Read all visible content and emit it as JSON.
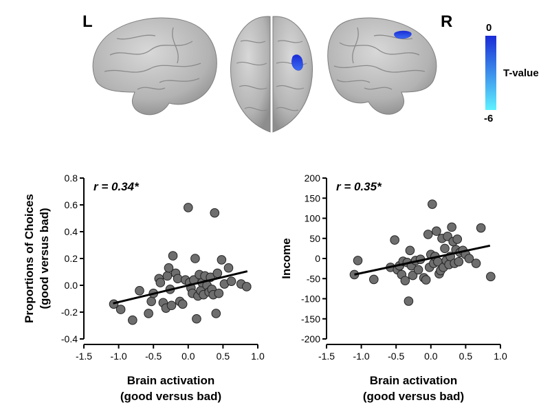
{
  "brain_panel": {
    "left_label": "L",
    "right_label": "R",
    "colorbar": {
      "top": "0",
      "bottom": "-6",
      "title": "T-value",
      "color_top": "#1a2bd6",
      "color_bottom": "#5ef2ff"
    },
    "surface_color": "#b9b9b9",
    "cluster_color": "#1f3fe0"
  },
  "chart_data": [
    {
      "type": "scatter",
      "annotation": "r = 0.34*",
      "ylabel_lines": [
        "Proportions of Choices",
        "(good versus bad)"
      ],
      "xlabel_lines": [
        "Brain activation",
        "(good versus bad)"
      ],
      "xlim": [
        -1.5,
        1.0
      ],
      "ylim": [
        -0.4,
        0.8
      ],
      "xticks": [
        -1.5,
        -1.0,
        -0.5,
        0.0,
        0.5,
        1.0
      ],
      "xtick_labels": [
        "-1.5",
        "-1.0",
        "-0.5",
        "0.0",
        "0.5",
        "1.0"
      ],
      "yticks": [
        -0.4,
        -0.2,
        0.0,
        0.2,
        0.4,
        0.6,
        0.8
      ],
      "ytick_labels": [
        "-0.4",
        "-0.2",
        "0.0",
        "0.2",
        "0.4",
        "0.6",
        "0.8"
      ],
      "fit_line": {
        "x": [
          -1.08,
          0.85
        ],
        "y": [
          -0.135,
          0.105
        ]
      },
      "points": [
        [
          -1.07,
          -0.14
        ],
        [
          -0.97,
          -0.18
        ],
        [
          -0.8,
          -0.26
        ],
        [
          -0.7,
          -0.04
        ],
        [
          -0.57,
          -0.21
        ],
        [
          -0.53,
          -0.12
        ],
        [
          -0.5,
          -0.06
        ],
        [
          -0.42,
          0.05
        ],
        [
          -0.4,
          0.02
        ],
        [
          -0.36,
          -0.13
        ],
        [
          -0.32,
          -0.17
        ],
        [
          -0.3,
          0.07
        ],
        [
          -0.28,
          0.13
        ],
        [
          -0.26,
          -0.03
        ],
        [
          -0.24,
          -0.15
        ],
        [
          -0.22,
          0.22
        ],
        [
          -0.18,
          0.09
        ],
        [
          -0.15,
          0.05
        ],
        [
          -0.12,
          -0.12
        ],
        [
          -0.08,
          -0.14
        ],
        [
          -0.04,
          0.04
        ],
        [
          0.0,
          0.58
        ],
        [
          0.02,
          0.02
        ],
        [
          0.04,
          -0.02
        ],
        [
          0.06,
          -0.06
        ],
        [
          0.08,
          0.04
        ],
        [
          0.1,
          0.2
        ],
        [
          0.12,
          -0.25
        ],
        [
          0.14,
          -0.08
        ],
        [
          0.16,
          0.08
        ],
        [
          0.18,
          -0.04
        ],
        [
          0.2,
          0.02
        ],
        [
          0.22,
          -0.07
        ],
        [
          0.24,
          0.07
        ],
        [
          0.27,
          0.0
        ],
        [
          0.3,
          -0.05
        ],
        [
          0.32,
          0.06
        ],
        [
          0.34,
          -0.03
        ],
        [
          0.36,
          -0.07
        ],
        [
          0.38,
          0.54
        ],
        [
          0.4,
          -0.21
        ],
        [
          0.42,
          0.09
        ],
        [
          0.44,
          -0.06
        ],
        [
          0.48,
          0.19
        ],
        [
          0.52,
          0.01
        ],
        [
          0.58,
          0.13
        ],
        [
          0.62,
          0.03
        ],
        [
          0.76,
          0.01
        ],
        [
          0.84,
          -0.01
        ]
      ]
    },
    {
      "type": "scatter",
      "annotation": "r = 0.35*",
      "ylabel_lines": [
        "Income"
      ],
      "xlabel_lines": [
        "Brain activation",
        "(good versus bad)"
      ],
      "xlim": [
        -1.5,
        1.0
      ],
      "ylim": [
        -200,
        200
      ],
      "xticks": [
        -1.5,
        -1.0,
        -0.5,
        0.0,
        0.5,
        1.0
      ],
      "xtick_labels": [
        "-1.5",
        "-1.0",
        "-0.5",
        "0.0",
        "0.5",
        "1.0"
      ],
      "yticks": [
        -200,
        -150,
        -100,
        -50,
        0,
        50,
        100,
        150,
        200
      ],
      "ytick_labels": [
        "-200",
        "-150",
        "-100",
        "-50",
        "0",
        "50",
        "100",
        "150",
        "200"
      ],
      "fit_line": {
        "x": [
          -1.1,
          0.85
        ],
        "y": [
          -40,
          32
        ]
      },
      "points": [
        [
          -1.1,
          -40
        ],
        [
          -1.05,
          -5
        ],
        [
          -0.82,
          -52
        ],
        [
          -0.58,
          -22
        ],
        [
          -0.52,
          46
        ],
        [
          -0.48,
          -28
        ],
        [
          -0.45,
          -18
        ],
        [
          -0.42,
          -40
        ],
        [
          -0.4,
          -7
        ],
        [
          -0.37,
          -55
        ],
        [
          -0.34,
          -10
        ],
        [
          -0.32,
          -106
        ],
        [
          -0.3,
          20
        ],
        [
          -0.28,
          -18
        ],
        [
          -0.26,
          -42
        ],
        [
          -0.22,
          -5
        ],
        [
          -0.18,
          -28
        ],
        [
          -0.15,
          -2
        ],
        [
          -0.1,
          -48
        ],
        [
          -0.07,
          -53
        ],
        [
          -0.04,
          60
        ],
        [
          -0.02,
          -22
        ],
        [
          0.0,
          10
        ],
        [
          0.02,
          135
        ],
        [
          0.04,
          -12
        ],
        [
          0.06,
          5
        ],
        [
          0.08,
          68
        ],
        [
          0.1,
          -8
        ],
        [
          0.12,
          -38
        ],
        [
          0.14,
          -30
        ],
        [
          0.16,
          50
        ],
        [
          0.18,
          -22
        ],
        [
          0.2,
          25
        ],
        [
          0.22,
          -5
        ],
        [
          0.24,
          55
        ],
        [
          0.26,
          -15
        ],
        [
          0.28,
          5
        ],
        [
          0.3,
          78
        ],
        [
          0.32,
          42
        ],
        [
          0.34,
          -12
        ],
        [
          0.36,
          22
        ],
        [
          0.38,
          48
        ],
        [
          0.4,
          -8
        ],
        [
          0.42,
          15
        ],
        [
          0.46,
          20
        ],
        [
          0.5,
          10
        ],
        [
          0.55,
          0
        ],
        [
          0.65,
          -12
        ],
        [
          0.72,
          76
        ],
        [
          0.86,
          -45
        ]
      ]
    }
  ]
}
